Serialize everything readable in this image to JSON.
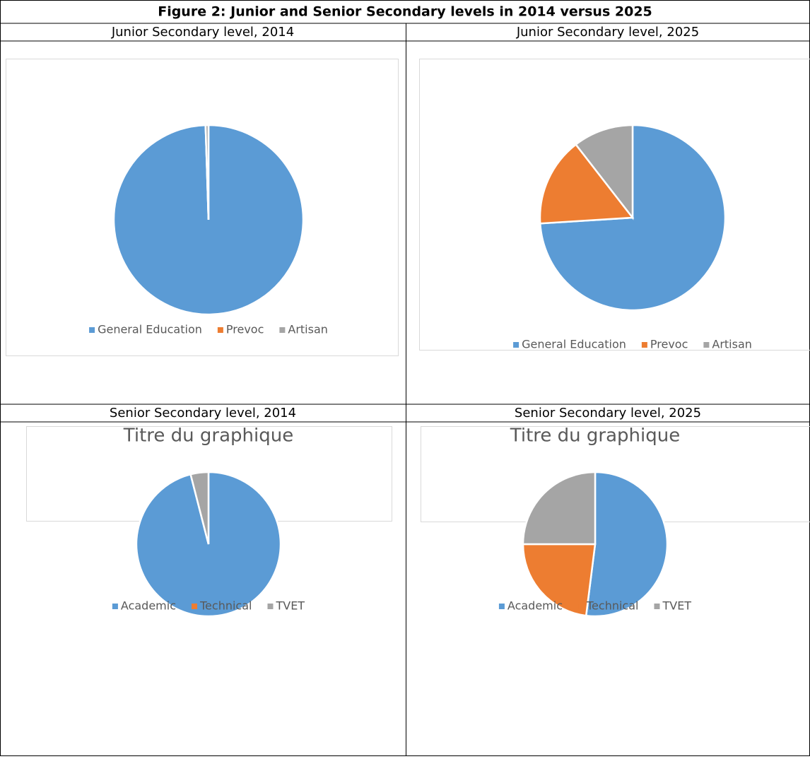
{
  "title": "Figure 2: Junior and Senior Secondary levels in 2014 versus 2025",
  "chart_data": [
    {
      "type": "pie",
      "panel_title": "Junior Secondary level, 2014",
      "categories": [
        "General Education",
        "Prevoc",
        "Artisan"
      ],
      "values": [
        99.5,
        0,
        0.5
      ],
      "colors": [
        "#5b9bd5",
        "#ed7d31",
        "#a5a5a5"
      ],
      "legend": "bottom"
    },
    {
      "type": "pie",
      "panel_title": "Junior Secondary level, 2025",
      "categories": [
        "General Education",
        "Prevoc",
        "Artisan"
      ],
      "values": [
        74,
        15.5,
        10.5
      ],
      "colors": [
        "#5b9bd5",
        "#ed7d31",
        "#a5a5a5"
      ],
      "legend": "bottom"
    },
    {
      "type": "pie",
      "panel_title": "Senior Secondary level, 2014",
      "title": "Titre du graphique",
      "categories": [
        "Academic",
        "Technical",
        "TVET"
      ],
      "values": [
        96,
        0,
        4
      ],
      "colors": [
        "#5b9bd5",
        "#ed7d31",
        "#a5a5a5"
      ],
      "legend": "bottom"
    },
    {
      "type": "pie",
      "panel_title": "Senior Secondary level, 2025",
      "title": "Titre du graphique",
      "categories": [
        "Academic",
        "Technical",
        "TVET"
      ],
      "values": [
        52,
        23,
        25
      ],
      "colors": [
        "#5b9bd5",
        "#ed7d31",
        "#a5a5a5"
      ],
      "legend": "bottom"
    }
  ]
}
